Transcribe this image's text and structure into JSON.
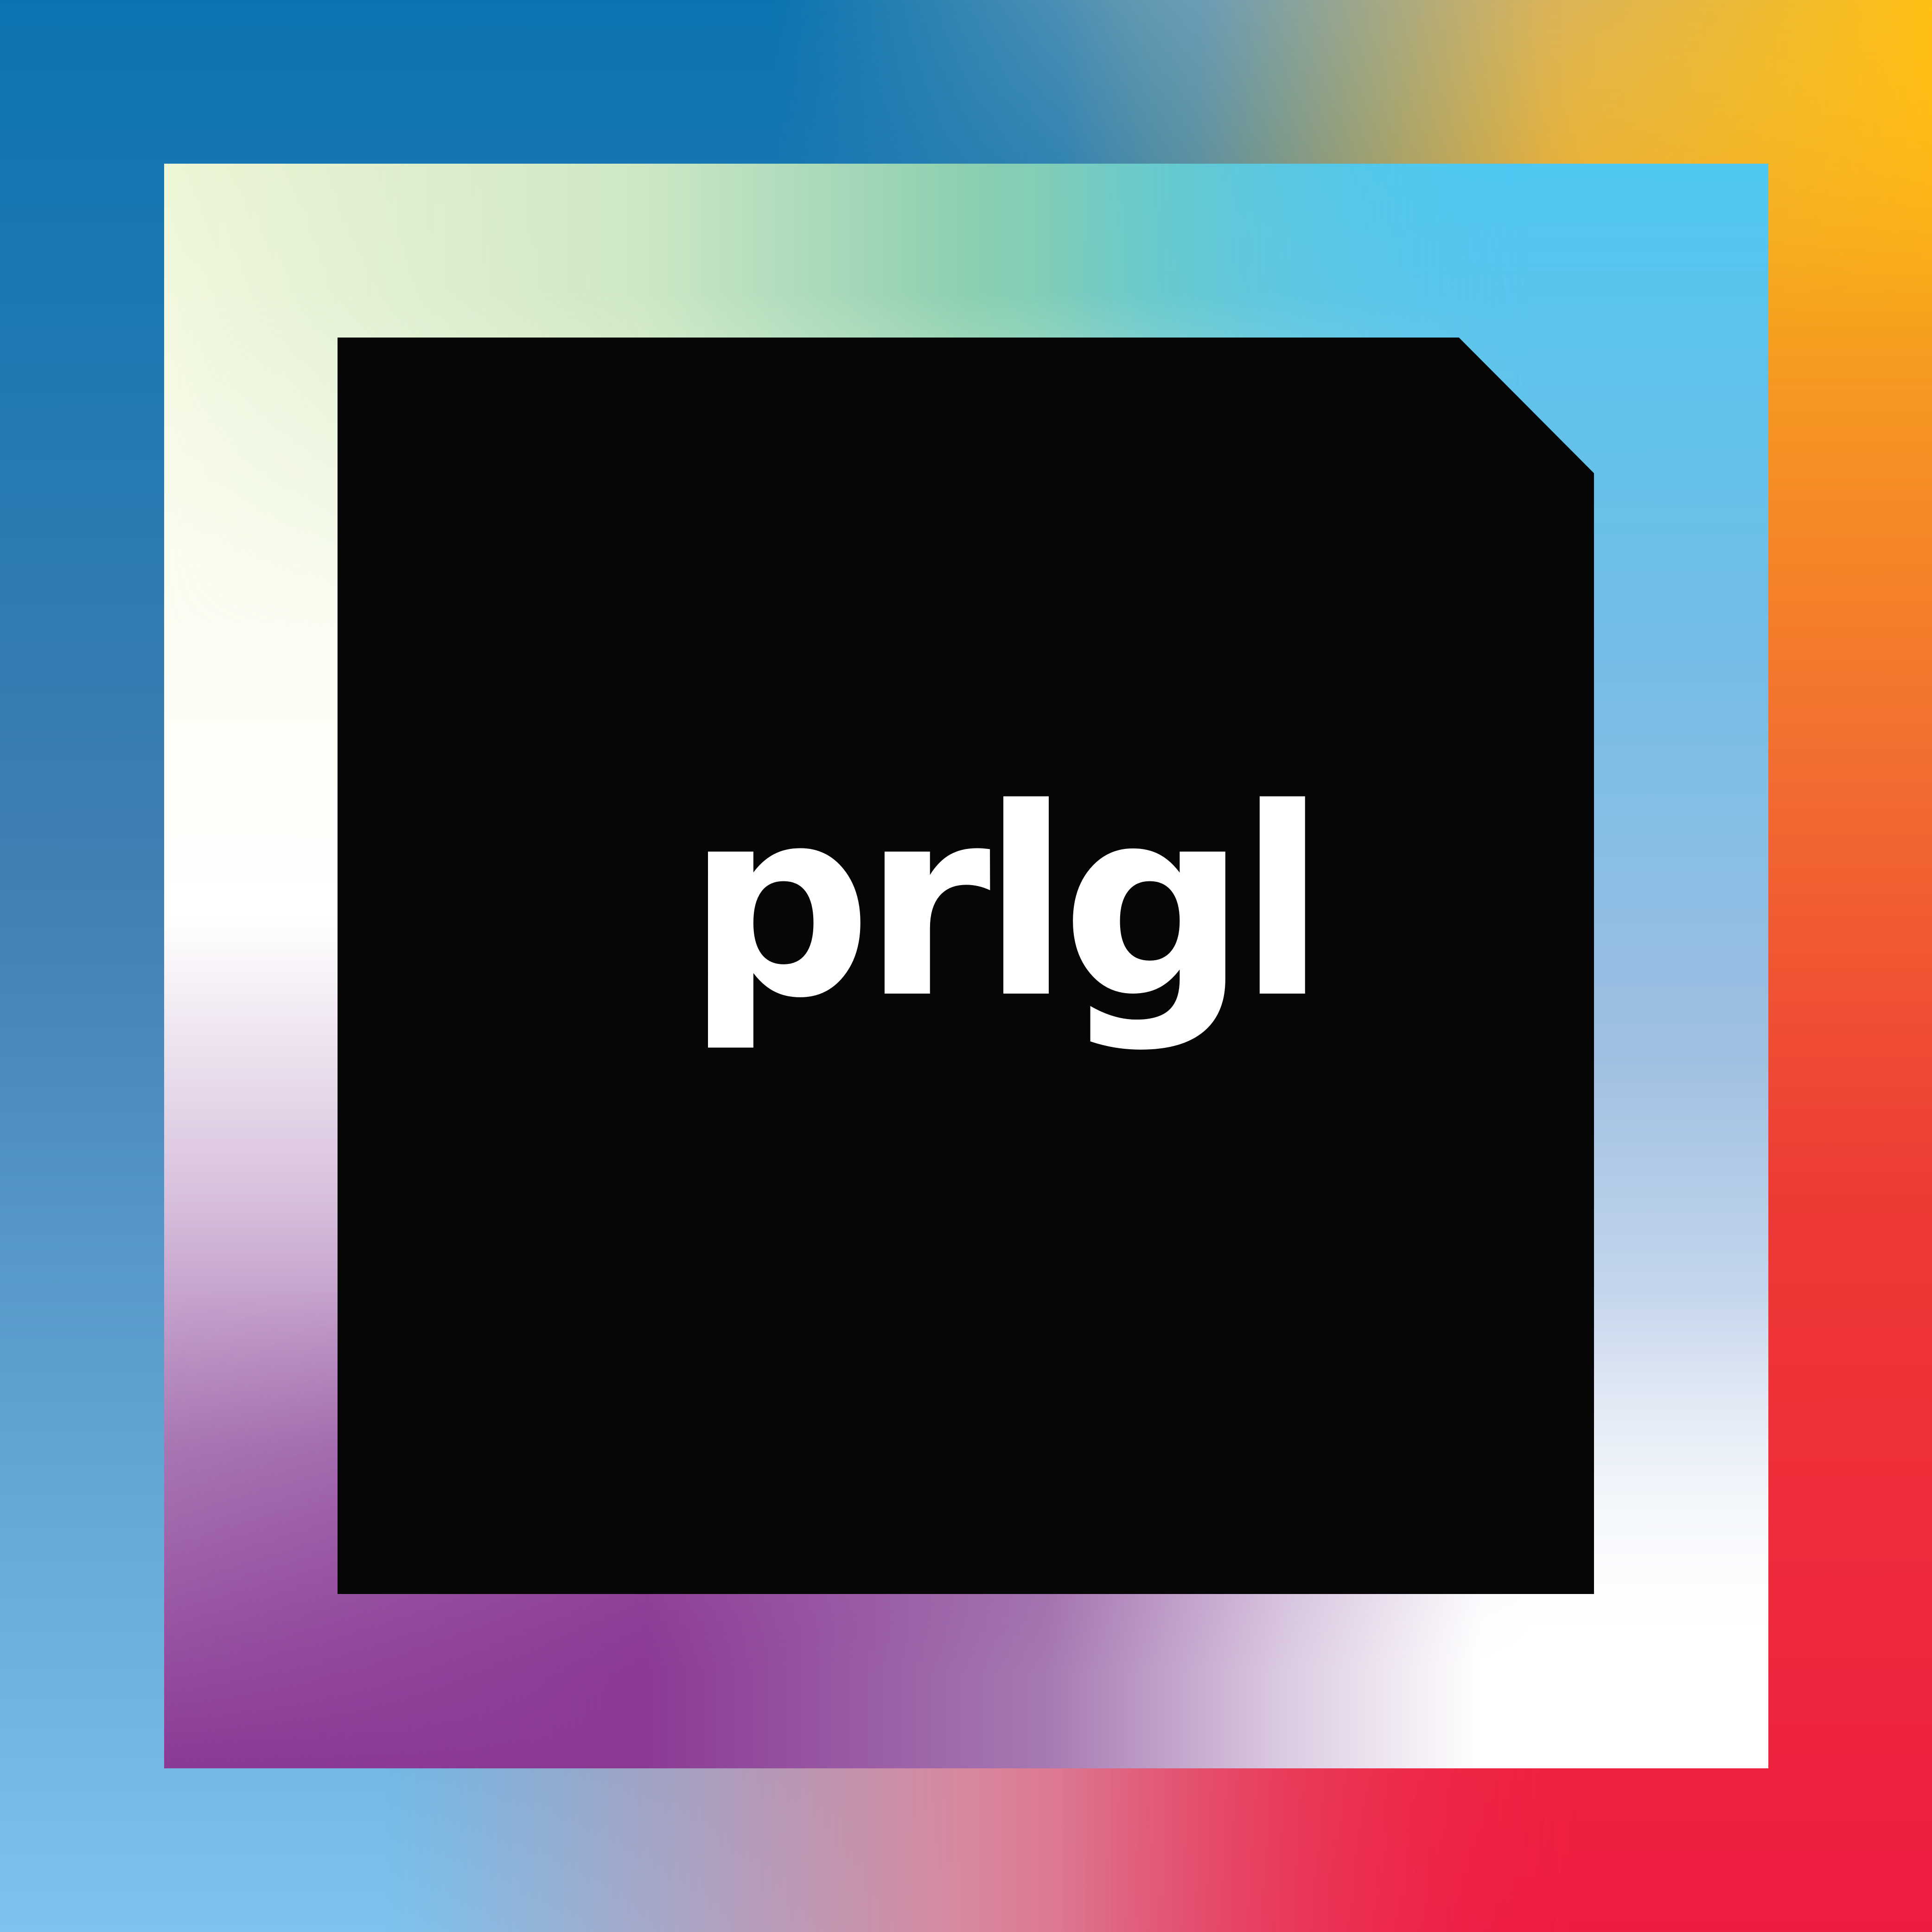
{
  "brand": {
    "wordmark": "prlgl"
  },
  "colors": {
    "outer_top_left": "#0b74b0",
    "outer_top_right": "#ffc114",
    "outer_bottom_left": "#7cc4ee",
    "outer_bottom_right": "#ef1c43",
    "inner_top_left": "#eef6d7",
    "inner_top_right": "#4fc8f2",
    "inner_bottom_left": "#8a3a94",
    "inner_bottom_right": "#ffffff",
    "panel": "#070607",
    "text": "#ffffff"
  }
}
